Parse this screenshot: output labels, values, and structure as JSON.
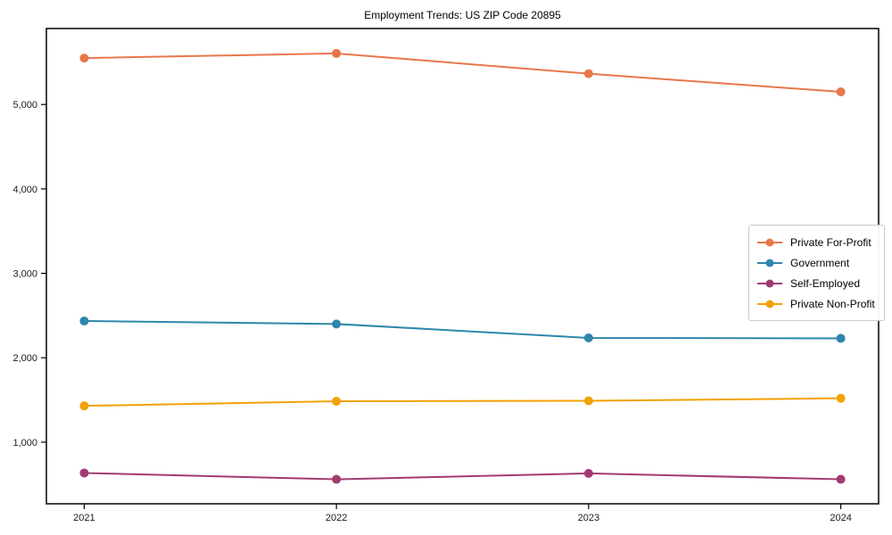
{
  "chart_data": {
    "type": "line",
    "title": "Employment Trends: US ZIP Code 20895",
    "categories": [
      "2021",
      "2022",
      "2023",
      "2024"
    ],
    "series": [
      {
        "name": "Private For-Profit",
        "color": "#E8774A",
        "values": [
          5550,
          5605,
          5365,
          5150
        ]
      },
      {
        "name": "Government",
        "color": "#2E86AB",
        "values": [
          2435,
          2400,
          2235,
          2230
        ]
      },
      {
        "name": "Self-Employed",
        "color": "#A23B72",
        "values": [
          635,
          560,
          630,
          560
        ]
      },
      {
        "name": "Private Non-Profit",
        "color": "#F2A104",
        "values": [
          1430,
          1485,
          1490,
          1520
        ]
      }
    ],
    "yticks": [
      1000,
      2000,
      3000,
      4000,
      5000
    ],
    "ytick_labels": [
      "1,000",
      "2,000",
      "3,000",
      "4,000",
      "5,000"
    ],
    "ylim": [
      270,
      5900
    ],
    "xlabel": "",
    "ylabel": "",
    "grid": false,
    "marker": "circle",
    "legend_position": "right",
    "axis_color": "#000000",
    "tick_label_color": "#1a1a1a"
  }
}
